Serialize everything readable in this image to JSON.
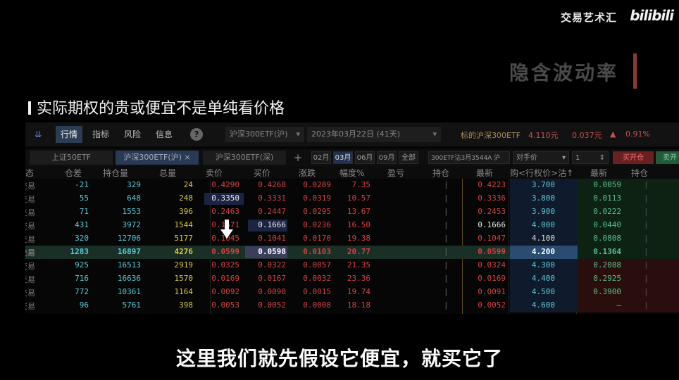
{
  "brand": {
    "text": "交易艺术汇",
    "logo": "bilibili"
  },
  "section_title": "隐含波动率",
  "heading": "实际期权的贵或便宜不是单纯看价格",
  "toolbar": {
    "tabs": [
      "行情",
      "指标",
      "风险",
      "信息"
    ],
    "help": "?",
    "underlying": "沪深300ETF(沪)",
    "expiry": "2023年03月22日 (41天)",
    "target_label": "标的沪深300ETF",
    "target_price": "4.110元",
    "target_change": "0.037元",
    "target_pct": "0.91%"
  },
  "tabbar": {
    "tabs": [
      "上证50ETF",
      "沪深300ETF(沪)",
      "沪深300ETF(深)"
    ],
    "plus": "+",
    "months": [
      "02月",
      "03月",
      "06月",
      "09月",
      "全部"
    ],
    "contract": "300ETF沽3月3544A 沪",
    "price_type": "对手价",
    "qty": "1",
    "buy_open": "买开仓",
    "extra": "卖开"
  },
  "columns": [
    "态",
    "仓差",
    "持仓量",
    "总量",
    "卖价",
    "买价",
    "涨跌",
    "幅度%",
    "盈亏",
    "持仓",
    "最新",
    "购<行权价>沽↑",
    "最新",
    "持仓"
  ],
  "rows": [
    {
      "status": "交易",
      "diff": "-21",
      "oi": "329",
      "vol": "24",
      "ask": "0.4290",
      "bid": "0.4268",
      "chg": "0.0289",
      "pct": "7.35",
      "last": "0.4223",
      "strike": "3.700",
      "plast": "0.0059"
    },
    {
      "status": "交易",
      "diff": "55",
      "oi": "648",
      "vol": "248",
      "ask": "0.3350",
      "bid": "0.3331",
      "chg": "0.0319",
      "pct": "10.57",
      "last": "0.3336",
      "strike": "3.800",
      "plast": "0.0113"
    },
    {
      "status": "交易",
      "diff": "71",
      "oi": "1553",
      "vol": "396",
      "ask": "0.2463",
      "bid": "0.2447",
      "chg": "0.0295",
      "pct": "13.67",
      "last": "0.2453",
      "strike": "3.900",
      "plast": "0.0222"
    },
    {
      "status": "交易",
      "diff": "431",
      "oi": "3972",
      "vol": "1544",
      "ask": "0.1671",
      "bid": "0.1666",
      "chg": "0.0236",
      "pct": "16.50",
      "last": "0.1666",
      "strike": "4.000",
      "plast": "0.0440"
    },
    {
      "status": "交易",
      "diff": "320",
      "oi": "12706",
      "vol": "5177",
      "ask": "0.1045",
      "bid": "0.1041",
      "chg": "0.0170",
      "pct": "19.38",
      "last": "0.1047",
      "strike": "4.100",
      "plast": "0.0808"
    },
    {
      "status": "交易",
      "diff": "1283",
      "oi": "16897",
      "vol": "4276",
      "ask": "0.0599",
      "bid": "0.0598",
      "chg": "0.0103",
      "pct": "20.77",
      "last": "0.0599",
      "strike": "4.200",
      "plast": "0.1364"
    },
    {
      "status": "交易",
      "diff": "925",
      "oi": "16513",
      "vol": "2919",
      "ask": "0.0325",
      "bid": "0.0322",
      "chg": "0.0057",
      "pct": "21.35",
      "last": "0.0324",
      "strike": "4.300",
      "plast": "0.2088"
    },
    {
      "status": "交易",
      "diff": "716",
      "oi": "16636",
      "vol": "1570",
      "ask": "0.0169",
      "bid": "0.0167",
      "chg": "0.0032",
      "pct": "23.36",
      "last": "0.0169",
      "strike": "4.400",
      "plast": "0.2925"
    },
    {
      "status": "交易",
      "diff": "772",
      "oi": "10361",
      "vol": "1164",
      "ask": "0.0092",
      "bid": "0.0090",
      "chg": "0.0015",
      "pct": "19.74",
      "last": "0.0091",
      "strike": "4.500",
      "plast": "0.3900"
    },
    {
      "status": "交易",
      "diff": "96",
      "oi": "5761",
      "vol": "398",
      "ask": "0.0053",
      "bid": "0.0052",
      "chg": "0.0008",
      "pct": "18.18",
      "last": "0.0052",
      "strike": "4.600",
      "plast": "—"
    }
  ],
  "highlight_row": 5,
  "subtitle": "这里我们就先假设它便宜，就买它了",
  "colors": {
    "red": "#d2423f",
    "green": "#55c08a",
    "cyan": "#5ac8d8",
    "yellow": "#d8c840",
    "blue_sel": "#2d3c55"
  },
  "icons": {
    "arrow": "down-arrow-icon",
    "sort": "sort-icon",
    "help": "help-icon"
  }
}
